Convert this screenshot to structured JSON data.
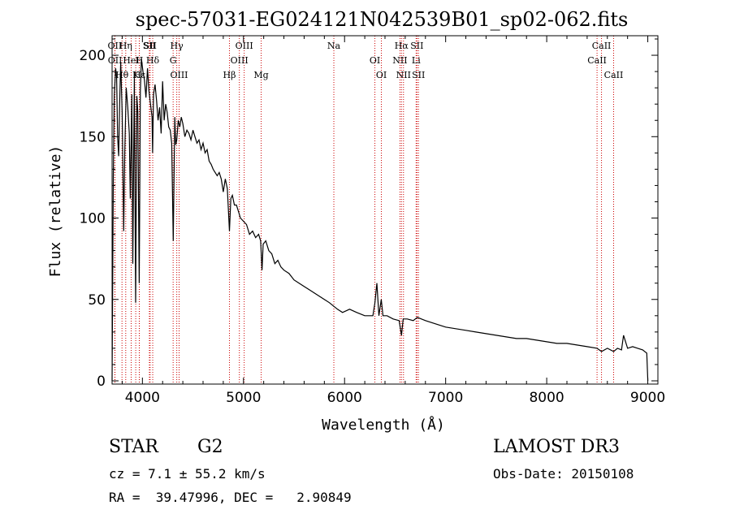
{
  "chart_data": {
    "type": "line",
    "title": "spec-57031-EG024121N042539B01_sp02-062.fits",
    "xlabel": "Wavelength (Å)",
    "ylabel": "Flux (relative)",
    "xlim": [
      3700,
      9100
    ],
    "ylim": [
      -2,
      212
    ],
    "xticks": [
      4000,
      5000,
      6000,
      7000,
      8000,
      9000
    ],
    "xtick_labels": [
      "4000",
      "5000",
      "6000",
      "7000",
      "8000",
      "9000"
    ],
    "yticks": [
      0,
      50,
      100,
      150,
      200
    ],
    "ytick_labels": [
      "0",
      "50",
      "100",
      "150",
      "200"
    ],
    "series": [
      {
        "name": "flux",
        "x": [
          3700,
          3712,
          3722,
          3735,
          3745,
          3755,
          3765,
          3775,
          3785,
          3800,
          3815,
          3825,
          3840,
          3855,
          3870,
          3880,
          3895,
          3905,
          3920,
          3933,
          3945,
          3955,
          3968,
          3980,
          3990,
          4005,
          4020,
          4035,
          4050,
          4065,
          4080,
          4095,
          4101,
          4110,
          4125,
          4140,
          4155,
          4170,
          4185,
          4200,
          4215,
          4230,
          4245,
          4260,
          4275,
          4290,
          4305,
          4320,
          4330,
          4340,
          4355,
          4370,
          4385,
          4400,
          4420,
          4440,
          4460,
          4480,
          4500,
          4520,
          4540,
          4560,
          4580,
          4600,
          4620,
          4640,
          4660,
          4680,
          4700,
          4720,
          4740,
          4760,
          4780,
          4800,
          4820,
          4840,
          4861,
          4875,
          4890,
          4910,
          4930,
          4950,
          4970,
          5000,
          5030,
          5060,
          5090,
          5120,
          5150,
          5170,
          5183,
          5195,
          5220,
          5250,
          5280,
          5310,
          5340,
          5370,
          5400,
          5450,
          5500,
          5550,
          5600,
          5650,
          5700,
          5750,
          5800,
          5850,
          5890,
          5930,
          5980,
          6050,
          6120,
          6200,
          6280,
          6300,
          6320,
          6340,
          6363,
          6380,
          6420,
          6480,
          6540,
          6563,
          6580,
          6620,
          6680,
          6720,
          6800,
          6900,
          7000,
          7100,
          7200,
          7300,
          7400,
          7500,
          7600,
          7700,
          7800,
          7900,
          8000,
          8100,
          8200,
          8300,
          8400,
          8498,
          8542,
          8600,
          8662,
          8700,
          8740,
          8760,
          8800,
          8850,
          8900,
          8950,
          8990,
          9000
        ],
        "y": [
          0,
          125,
          175,
          192,
          186,
          150,
          138,
          170,
          196,
          165,
          92,
          140,
          180,
          168,
          152,
          112,
          176,
          72,
          186,
          48,
          175,
          165,
          60,
          178,
          198,
          190,
          185,
          174,
          192,
          178,
          170,
          162,
          140,
          176,
          182,
          172,
          160,
          168,
          152,
          184,
          160,
          170,
          165,
          156,
          154,
          146,
          86,
          162,
          145,
          148,
          160,
          156,
          162,
          158,
          150,
          154,
          152,
          148,
          154,
          150,
          146,
          148,
          142,
          146,
          140,
          142,
          135,
          133,
          130,
          128,
          126,
          128,
          124,
          116,
          124,
          118,
          92,
          112,
          114,
          108,
          108,
          104,
          100,
          98,
          96,
          90,
          92,
          88,
          90,
          86,
          68,
          84,
          86,
          80,
          78,
          72,
          74,
          70,
          68,
          66,
          62,
          60,
          58,
          56,
          54,
          52,
          50,
          48,
          46,
          44,
          42,
          44,
          42,
          40,
          40,
          48,
          60,
          40,
          50,
          40,
          40,
          38,
          37,
          28,
          38,
          38,
          37,
          39,
          37,
          35,
          33,
          32,
          31,
          30,
          29,
          28,
          27,
          26,
          26,
          25,
          24,
          23,
          23,
          22,
          21,
          20,
          18,
          20,
          18,
          20,
          19,
          28,
          20,
          21,
          20,
          19,
          17,
          0
        ]
      }
    ],
    "line_markers": [
      {
        "label": "OII",
        "wavelength": 3727
      },
      {
        "label": "OII",
        "wavelength": 3729
      },
      {
        "label": "Hθ",
        "wavelength": 3798
      },
      {
        "label": "Hη",
        "wavelength": 3835
      },
      {
        "label": "HeI",
        "wavelength": 3889
      },
      {
        "label": "K",
        "wavelength": 3934
      },
      {
        "label": "SII",
        "wavelength": 4069
      },
      {
        "label": "H",
        "wavelength": 3969
      },
      {
        "label": "Hε",
        "wavelength": 3970
      },
      {
        "label": "SII",
        "wavelength": 4076
      },
      {
        "label": "Hδ",
        "wavelength": 4102
      },
      {
        "label": "OIII",
        "wavelength": 4363
      },
      {
        "label": "Hγ",
        "wavelength": 4340
      },
      {
        "label": "G",
        "wavelength": 4304
      },
      {
        "label": "Hβ",
        "wavelength": 4861
      },
      {
        "label": "OIII",
        "wavelength": 5007
      },
      {
        "label": "OIII",
        "wavelength": 4959
      },
      {
        "label": "Mg",
        "wavelength": 5175
      },
      {
        "label": "Na",
        "wavelength": 5894
      },
      {
        "label": "OI",
        "wavelength": 6300
      },
      {
        "label": "OI",
        "wavelength": 6364
      },
      {
        "label": "Hα",
        "wavelength": 6563
      },
      {
        "label": "NII",
        "wavelength": 6548
      },
      {
        "label": "NII",
        "wavelength": 6583
      },
      {
        "label": "SII",
        "wavelength": 6716
      },
      {
        "label": "Li",
        "wavelength": 6708
      },
      {
        "label": "SII",
        "wavelength": 6731
      },
      {
        "label": "CaII",
        "wavelength": 8542
      },
      {
        "label": "CaII",
        "wavelength": 8498
      },
      {
        "label": "CaII",
        "wavelength": 8662
      }
    ]
  },
  "info": {
    "object_class": "STAR",
    "subclass": "G2",
    "survey": "LAMOST DR3",
    "redshift": "cz = 7.1 ± 55.2 km/s",
    "obs_date": "Obs-Date: 20150108",
    "coords": "RA =  39.47996, DEC =   2.90849"
  }
}
